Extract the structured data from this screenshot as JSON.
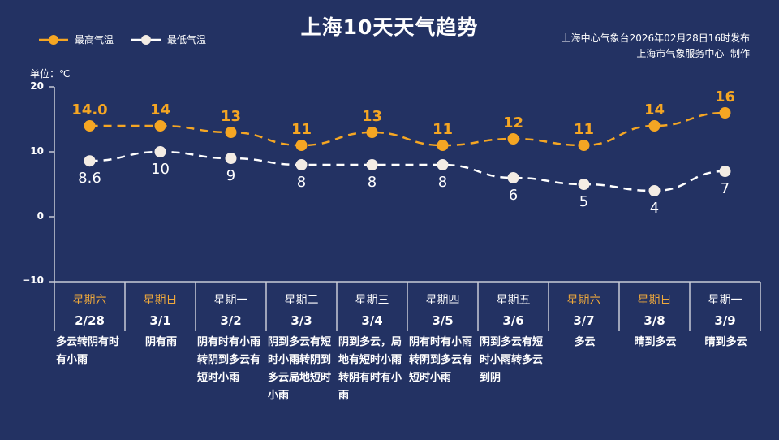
{
  "header": {
    "title": "上海10天天气趋势",
    "publish_line1": "上海中心气象台2026年02月28日16时发布",
    "publish_line2": "上海市气象服务中心  制作"
  },
  "legend": {
    "high_label": "最高气温",
    "low_label": "最低气温"
  },
  "unit_label": "单位：℃",
  "colors": {
    "background": "#233263",
    "high": "#f5a623",
    "low": "#f3ece4",
    "weekend": "#f0a93b",
    "axis": "#c8cbd6"
  },
  "yaxis": {
    "ticks": [
      "20",
      "10",
      "0",
      "−10"
    ]
  },
  "days": [
    {
      "weekday": "星期六",
      "date": "2/28",
      "weekend": true,
      "high_label": "14.0",
      "low_label": "8.6",
      "desc": "多云转阴有时有小雨"
    },
    {
      "weekday": "星期日",
      "date": "3/1",
      "weekend": true,
      "high_label": "14",
      "low_label": "10",
      "desc": "阴有雨"
    },
    {
      "weekday": "星期一",
      "date": "3/2",
      "weekend": false,
      "high_label": "13",
      "low_label": "9",
      "desc": "阴有时有小雨转阴到多云有短时小雨"
    },
    {
      "weekday": "星期二",
      "date": "3/3",
      "weekend": false,
      "high_label": "11",
      "low_label": "8",
      "desc": "阴到多云有短时小雨转阴到多云局地短时小雨"
    },
    {
      "weekday": "星期三",
      "date": "3/4",
      "weekend": false,
      "high_label": "13",
      "low_label": "8",
      "desc": "阴到多云，局地有短时小雨转阴有时有小雨"
    },
    {
      "weekday": "星期四",
      "date": "3/5",
      "weekend": false,
      "high_label": "11",
      "low_label": "8",
      "desc": "阴有时有小雨转阴到多云有短时小雨"
    },
    {
      "weekday": "星期五",
      "date": "3/6",
      "weekend": false,
      "high_label": "12",
      "low_label": "6",
      "desc": "阴到多云有短时小雨转多云到阴"
    },
    {
      "weekday": "星期六",
      "date": "3/7",
      "weekend": true,
      "high_label": "11",
      "low_label": "5",
      "desc": "多云"
    },
    {
      "weekday": "星期日",
      "date": "3/8",
      "weekend": true,
      "high_label": "14",
      "low_label": "4",
      "desc": "晴到多云"
    },
    {
      "weekday": "星期一",
      "date": "3/9",
      "weekend": false,
      "high_label": "16",
      "low_label": "7",
      "desc": "晴到多云"
    }
  ],
  "chart_data": {
    "type": "line",
    "title": "上海10天天气趋势",
    "xlabel": "",
    "ylabel": "单位：℃",
    "categories": [
      "2/28",
      "3/1",
      "3/2",
      "3/3",
      "3/4",
      "3/5",
      "3/6",
      "3/7",
      "3/8",
      "3/9"
    ],
    "ylim": [
      -10,
      20
    ],
    "yticks": [
      20,
      10,
      0,
      -10
    ],
    "grid": false,
    "legend_position": "top-left",
    "series": [
      {
        "name": "最高气温",
        "color": "#f5a623",
        "style": "dashed",
        "values": [
          14.0,
          14,
          13,
          11,
          13,
          11,
          12,
          11,
          14,
          16
        ]
      },
      {
        "name": "最低气温",
        "color": "#f3ece4",
        "style": "dashed",
        "values": [
          8.6,
          10,
          9,
          8,
          8,
          8,
          6,
          5,
          4,
          7
        ]
      }
    ]
  }
}
